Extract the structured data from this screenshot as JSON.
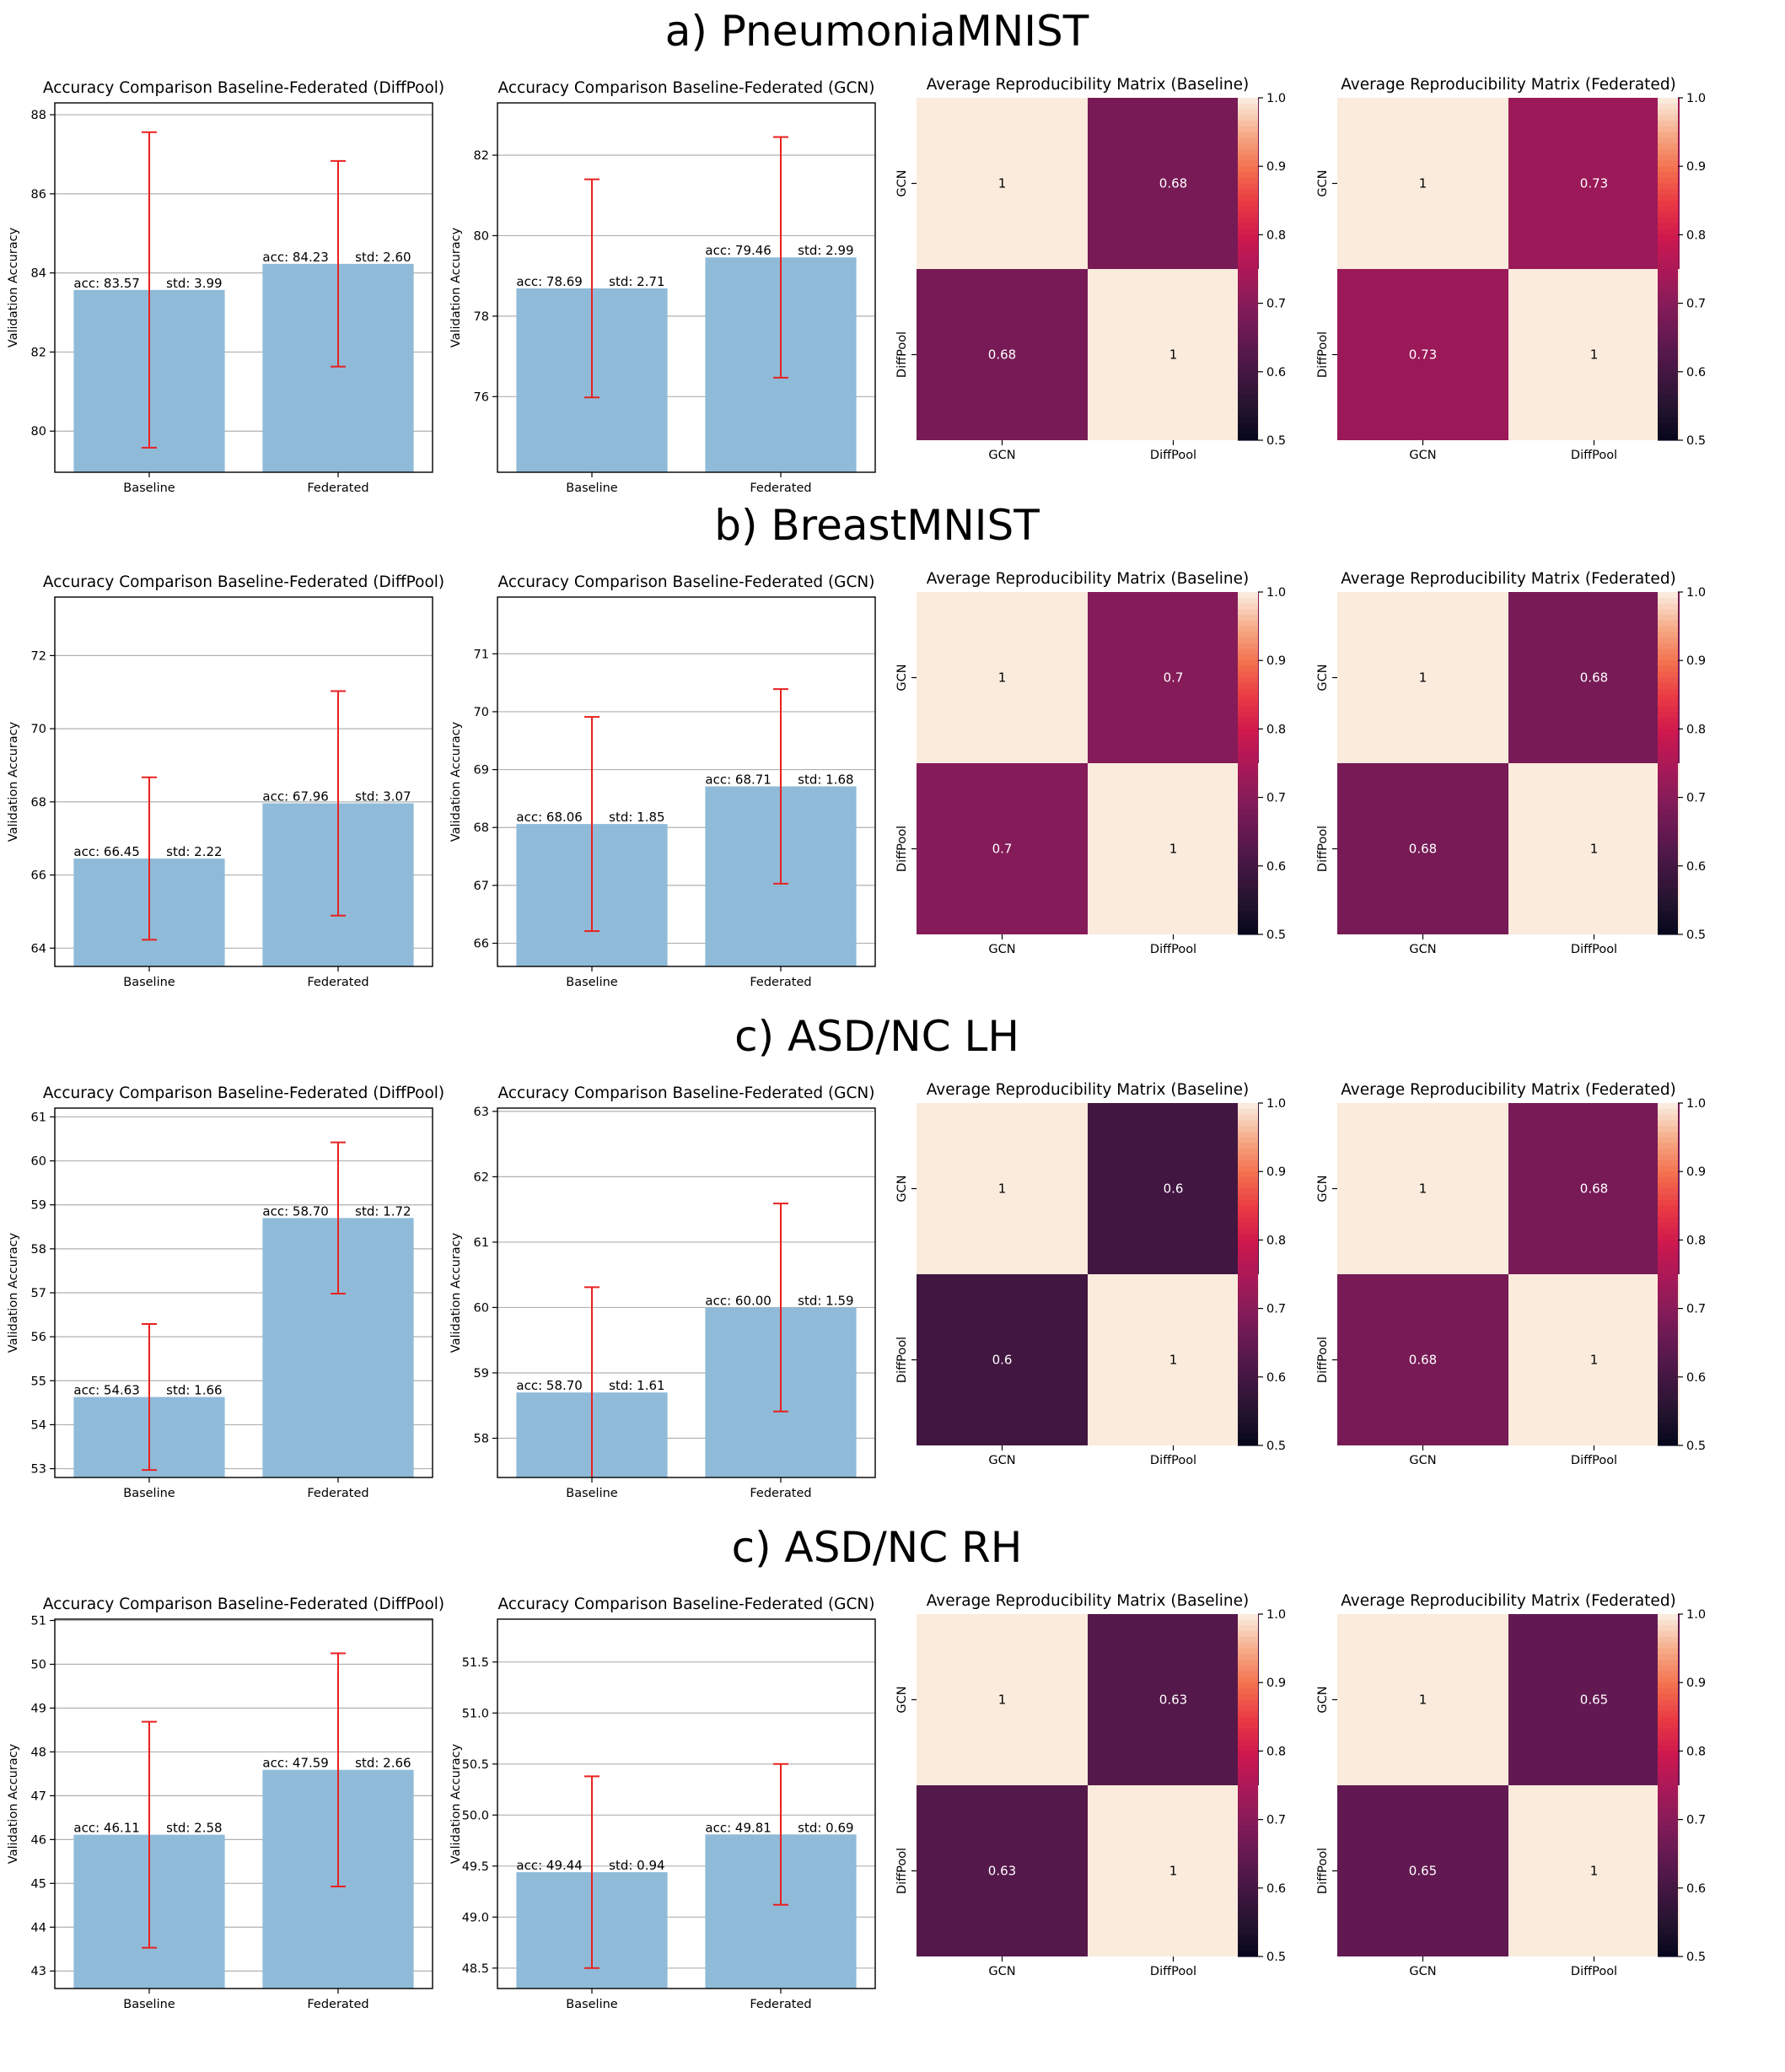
{
  "sections": [
    {
      "title": "a) PneumoniaMNIST"
    },
    {
      "title": "b) BreastMNIST"
    },
    {
      "title": "c) ASD/NC LH"
    },
    {
      "title": "c) ASD/NC RH"
    }
  ],
  "colors": {
    "bar": "#8fbbd9",
    "error_bar": "#e8211f",
    "grid": "#b0b0b0"
  },
  "heatmap_colorbar_ticks": [
    "0.5",
    "0.6",
    "0.7",
    "0.8",
    "0.9",
    "1.0"
  ],
  "chart_data": [
    {
      "type": "bar",
      "section": "a) PneumoniaMNIST",
      "title": "Accuracy Comparison Baseline-Federated (DiffPool)",
      "xlabel": "",
      "ylabel": "Validation Accuracy",
      "categories": [
        "Baseline",
        "Federated"
      ],
      "values": [
        83.57,
        84.23
      ],
      "std": [
        3.99,
        2.6
      ],
      "acc_labels": [
        "acc: 83.57",
        "acc: 84.23"
      ],
      "std_labels": [
        "std: 3.99",
        "std: 2.60"
      ],
      "ylim": [
        78.96,
        88.3
      ],
      "yticks": [
        "80",
        "82",
        "84",
        "86",
        "88"
      ],
      "ytick_values": [
        80,
        82,
        84,
        86,
        88
      ],
      "grid": true
    },
    {
      "type": "bar",
      "section": "a) PneumoniaMNIST",
      "title": "Accuracy Comparison Baseline-Federated (GCN)",
      "xlabel": "",
      "ylabel": "Validation Accuracy",
      "categories": [
        "Baseline",
        "Federated"
      ],
      "values": [
        78.69,
        79.46
      ],
      "std": [
        2.71,
        2.99
      ],
      "acc_labels": [
        "acc: 78.69",
        "acc: 79.46"
      ],
      "std_labels": [
        "std: 2.71",
        "std: 2.99"
      ],
      "ylim": [
        74.12,
        83.3
      ],
      "yticks": [
        "76",
        "78",
        "80",
        "82"
      ],
      "ytick_values": [
        76,
        78,
        80,
        82
      ],
      "grid": true
    },
    {
      "type": "heatmap",
      "section": "a) PneumoniaMNIST",
      "title": "Average Reproducibility Matrix (Baseline)",
      "rows": [
        "GCN",
        "DiffPool"
      ],
      "cols": [
        "GCN",
        "DiffPool"
      ],
      "values": [
        [
          1,
          0.68
        ],
        [
          0.68,
          1
        ]
      ],
      "labels": [
        [
          "1",
          "0.68"
        ],
        [
          "0.68",
          "1"
        ]
      ],
      "vmin": 0.5,
      "vmax": 1.0
    },
    {
      "type": "heatmap",
      "section": "a) PneumoniaMNIST",
      "title": "Average Reproducibility Matrix (Federated)",
      "rows": [
        "GCN",
        "DiffPool"
      ],
      "cols": [
        "GCN",
        "DiffPool"
      ],
      "values": [
        [
          1,
          0.73
        ],
        [
          0.73,
          1
        ]
      ],
      "labels": [
        [
          "1",
          "0.73"
        ],
        [
          "0.73",
          "1"
        ]
      ],
      "vmin": 0.5,
      "vmax": 1.0
    },
    {
      "type": "bar",
      "section": "b) BreastMNIST",
      "title": "Accuracy Comparison Baseline-Federated (DiffPool)",
      "xlabel": "",
      "ylabel": "Validation Accuracy",
      "categories": [
        "Baseline",
        "Federated"
      ],
      "values": [
        66.45,
        67.96
      ],
      "std": [
        2.22,
        3.07
      ],
      "acc_labels": [
        "acc: 66.45",
        "acc: 67.96"
      ],
      "std_labels": [
        "std: 2.22",
        "std: 3.07"
      ],
      "ylim": [
        63.5,
        73.6
      ],
      "yticks": [
        "64",
        "66",
        "68",
        "70",
        "72"
      ],
      "ytick_values": [
        64,
        66,
        68,
        70,
        72
      ],
      "grid": true
    },
    {
      "type": "bar",
      "section": "b) BreastMNIST",
      "title": "Accuracy Comparison Baseline-Federated (GCN)",
      "xlabel": "",
      "ylabel": "Validation Accuracy",
      "categories": [
        "Baseline",
        "Federated"
      ],
      "values": [
        68.06,
        68.71
      ],
      "std": [
        1.85,
        1.68
      ],
      "acc_labels": [
        "acc: 68.06",
        "acc: 68.71"
      ],
      "std_labels": [
        "std: 1.85",
        "std: 1.68"
      ],
      "ylim": [
        65.6,
        71.98
      ],
      "yticks": [
        "66",
        "67",
        "68",
        "69",
        "70",
        "71"
      ],
      "ytick_values": [
        66,
        67,
        68,
        69,
        70,
        71
      ],
      "grid": true
    },
    {
      "type": "heatmap",
      "section": "b) BreastMNIST",
      "title": "Average Reproducibility Matrix (Baseline)",
      "rows": [
        "GCN",
        "DiffPool"
      ],
      "cols": [
        "GCN",
        "DiffPool"
      ],
      "values": [
        [
          1,
          0.7
        ],
        [
          0.7,
          1
        ]
      ],
      "labels": [
        [
          "1",
          "0.7"
        ],
        [
          "0.7",
          "1"
        ]
      ],
      "vmin": 0.5,
      "vmax": 1.0
    },
    {
      "type": "heatmap",
      "section": "b) BreastMNIST",
      "title": "Average Reproducibility Matrix (Federated)",
      "rows": [
        "GCN",
        "DiffPool"
      ],
      "cols": [
        "GCN",
        "DiffPool"
      ],
      "values": [
        [
          1,
          0.68
        ],
        [
          0.68,
          1
        ]
      ],
      "labels": [
        [
          "1",
          "0.68"
        ],
        [
          "0.68",
          "1"
        ]
      ],
      "vmin": 0.5,
      "vmax": 1.0
    },
    {
      "type": "bar",
      "section": "c) ASD/NC LH",
      "title": "Accuracy Comparison Baseline-Federated (DiffPool)",
      "xlabel": "",
      "ylabel": "Validation Accuracy",
      "categories": [
        "Baseline",
        "Federated"
      ],
      "values": [
        54.63,
        58.7
      ],
      "std": [
        1.66,
        1.72
      ],
      "acc_labels": [
        "acc: 54.63",
        "acc: 58.70"
      ],
      "std_labels": [
        "std: 1.66",
        "std: 1.72"
      ],
      "ylim": [
        52.8,
        61.2
      ],
      "yticks": [
        "53",
        "54",
        "55",
        "56",
        "57",
        "58",
        "59",
        "60",
        "61"
      ],
      "ytick_values": [
        53,
        54,
        55,
        56,
        57,
        58,
        59,
        60,
        61
      ],
      "grid": true
    },
    {
      "type": "bar",
      "section": "c) ASD/NC LH",
      "title": "Accuracy Comparison Baseline-Federated (GCN)",
      "xlabel": "",
      "ylabel": "Validation Accuracy",
      "categories": [
        "Baseline",
        "Federated"
      ],
      "values": [
        58.7,
        60.0
      ],
      "std": [
        1.61,
        1.59
      ],
      "acc_labels": [
        "acc: 58.70",
        "acc: 60.00"
      ],
      "std_labels": [
        "std: 1.61",
        "std: 1.59"
      ],
      "ylim": [
        57.4,
        63.05
      ],
      "yticks": [
        "58",
        "59",
        "60",
        "61",
        "62",
        "63"
      ],
      "ytick_values": [
        58,
        59,
        60,
        61,
        62,
        63
      ],
      "grid": true
    },
    {
      "type": "heatmap",
      "section": "c) ASD/NC LH",
      "title": "Average Reproducibility Matrix (Baseline)",
      "rows": [
        "GCN",
        "DiffPool"
      ],
      "cols": [
        "GCN",
        "DiffPool"
      ],
      "values": [
        [
          1,
          0.6
        ],
        [
          0.6,
          1
        ]
      ],
      "labels": [
        [
          "1",
          "0.6"
        ],
        [
          "0.6",
          "1"
        ]
      ],
      "vmin": 0.5,
      "vmax": 1.0
    },
    {
      "type": "heatmap",
      "section": "c) ASD/NC LH",
      "title": "Average Reproducibility Matrix (Federated)",
      "rows": [
        "GCN",
        "DiffPool"
      ],
      "cols": [
        "GCN",
        "DiffPool"
      ],
      "values": [
        [
          1,
          0.68
        ],
        [
          0.68,
          1
        ]
      ],
      "labels": [
        [
          "1",
          "0.68"
        ],
        [
          "0.68",
          "1"
        ]
      ],
      "vmin": 0.5,
      "vmax": 1.0
    },
    {
      "type": "bar",
      "section": "c) ASD/NC RH",
      "title": "Accuracy Comparison Baseline-Federated (DiffPool)",
      "xlabel": "",
      "ylabel": "Validation Accuracy",
      "categories": [
        "Baseline",
        "Federated"
      ],
      "values": [
        46.11,
        47.59
      ],
      "std": [
        2.58,
        2.66
      ],
      "acc_labels": [
        "acc: 46.11",
        "acc: 47.59"
      ],
      "std_labels": [
        "std: 2.58",
        "std: 2.66"
      ],
      "ylim": [
        42.6,
        51.03
      ],
      "yticks": [
        "43",
        "44",
        "45",
        "46",
        "47",
        "48",
        "49",
        "50",
        "51"
      ],
      "ytick_values": [
        43,
        44,
        45,
        46,
        47,
        48,
        49,
        50,
        51
      ],
      "grid": true
    },
    {
      "type": "bar",
      "section": "c) ASD/NC RH",
      "title": "Accuracy Comparison Baseline-Federated (GCN)",
      "xlabel": "",
      "ylabel": "Validation Accuracy",
      "categories": [
        "Baseline",
        "Federated"
      ],
      "values": [
        49.44,
        49.81
      ],
      "std": [
        0.94,
        0.69
      ],
      "acc_labels": [
        "acc: 49.44",
        "acc: 49.81"
      ],
      "std_labels": [
        "std: 0.94",
        "std: 0.69"
      ],
      "ylim": [
        48.3,
        51.92
      ],
      "yticks": [
        "48.5",
        "49.0",
        "49.5",
        "50.0",
        "50.5",
        "51.0",
        "51.5"
      ],
      "ytick_values": [
        48.5,
        49.0,
        49.5,
        50.0,
        50.5,
        51.0,
        51.5
      ],
      "grid": true
    },
    {
      "type": "heatmap",
      "section": "c) ASD/NC RH",
      "title": "Average Reproducibility Matrix (Baseline)",
      "rows": [
        "GCN",
        "DiffPool"
      ],
      "cols": [
        "GCN",
        "DiffPool"
      ],
      "values": [
        [
          1,
          0.63
        ],
        [
          0.63,
          1
        ]
      ],
      "labels": [
        [
          "1",
          "0.63"
        ],
        [
          "0.63",
          "1"
        ]
      ],
      "vmin": 0.5,
      "vmax": 1.0
    },
    {
      "type": "heatmap",
      "section": "c) ASD/NC RH",
      "title": "Average Reproducibility Matrix (Federated)",
      "rows": [
        "GCN",
        "DiffPool"
      ],
      "cols": [
        "GCN",
        "DiffPool"
      ],
      "values": [
        [
          1,
          0.65
        ],
        [
          0.65,
          1
        ]
      ],
      "labels": [
        [
          "1",
          "0.65"
        ],
        [
          "0.65",
          "1"
        ]
      ],
      "vmin": 0.5,
      "vmax": 1.0
    }
  ]
}
